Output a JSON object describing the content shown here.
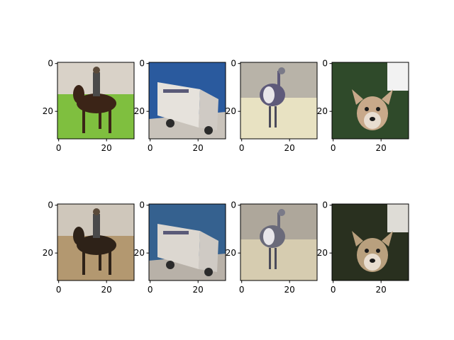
{
  "figure": {
    "rows": 2,
    "cols": 4,
    "panels": [
      {
        "subject": "horse-and-rider",
        "palette": {
          "sky": "#d9d2c8",
          "ground": "#7fbf3f",
          "subject": "#3b2417"
        }
      },
      {
        "subject": "truck",
        "palette": {
          "sky": "#2a5a9e",
          "ground": "#c9c3bb",
          "subject": "#e6e2dc"
        }
      },
      {
        "subject": "bird",
        "palette": {
          "sky": "#b8b3a8",
          "ground": "#e8e2c2",
          "subject": "#5e5a7a"
        }
      },
      {
        "subject": "dog",
        "palette": {
          "sky": "#f2f2f2",
          "ground": "#2f4a2a",
          "subject": "#c8a98a"
        }
      },
      {
        "subject": "horse-and-rider",
        "palette": {
          "sky": "#cfc7bb",
          "ground": "#b39870",
          "subject": "#2e2218"
        }
      },
      {
        "subject": "truck",
        "palette": {
          "sky": "#35618f",
          "ground": "#b8b1a8",
          "subject": "#dcd7d0"
        }
      },
      {
        "subject": "bird",
        "palette": {
          "sky": "#aea79b",
          "ground": "#d6ccb0",
          "subject": "#6a6a7a"
        }
      },
      {
        "subject": "dog",
        "palette": {
          "sky": "#dedcd6",
          "ground": "#29301f",
          "subject": "#b9a07e"
        }
      }
    ],
    "yticks": [
      "0",
      "20"
    ],
    "xticks": [
      "0",
      "20"
    ]
  }
}
